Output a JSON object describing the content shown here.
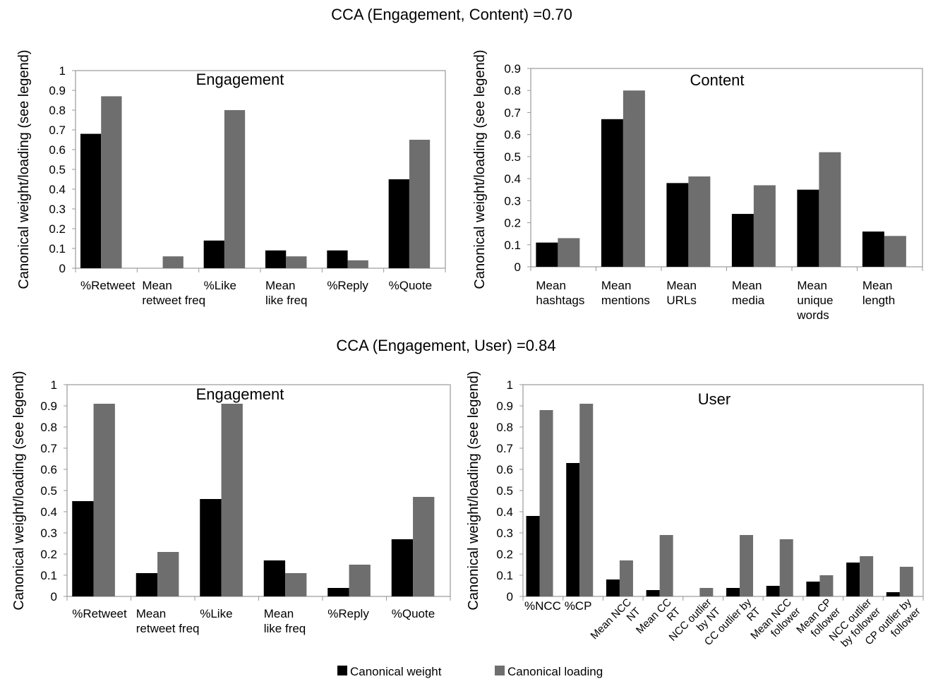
{
  "headers": {
    "top": "CCA (Engagement, Content) =0.70",
    "bottom": "CCA (Engagement, User) =0.84"
  },
  "legend": {
    "weight_label": "Canonical weight",
    "loading_label": "Canonical loading"
  },
  "colors": {
    "weight": "#000000",
    "loading": "#6e6e6e",
    "axis": "#999999"
  },
  "chart_data": [
    {
      "type": "bar",
      "title": "Engagement",
      "ylabel": "Canonical weight/loading (see legend)",
      "ylim": [
        0,
        1
      ],
      "yticks": [
        "0",
        "0.1",
        "0.2",
        "0.3",
        "0.4",
        "0.5",
        "0.6",
        "0.7",
        "0.8",
        "0.9",
        "1"
      ],
      "categories": [
        "%Retweet",
        "Mean\nretweet freq",
        "%Like",
        "Mean\nlike freq",
        "%Reply",
        "%Quote"
      ],
      "series": [
        {
          "name": "Canonical weight",
          "values": [
            0.68,
            0.0,
            0.14,
            0.09,
            0.09,
            0.45
          ]
        },
        {
          "name": "Canonical loading",
          "values": [
            0.87,
            0.06,
            0.8,
            0.06,
            0.04,
            0.65
          ]
        }
      ]
    },
    {
      "type": "bar",
      "title": "Content",
      "ylabel": "Canonical weight/loading (see legend)",
      "ylim": [
        0,
        0.9
      ],
      "yticks": [
        "0",
        "0.1",
        "0.2",
        "0.3",
        "0.4",
        "0.5",
        "0.6",
        "0.7",
        "0.8",
        "0.9"
      ],
      "categories": [
        "Mean\nhashtags",
        "Mean\nmentions",
        "Mean\nURLs",
        "Mean\nmedia",
        "Mean\nunique\nwords",
        "Mean\nlength"
      ],
      "series": [
        {
          "name": "Canonical weight",
          "values": [
            0.11,
            0.67,
            0.38,
            0.24,
            0.35,
            0.16
          ]
        },
        {
          "name": "Canonical loading",
          "values": [
            0.13,
            0.8,
            0.41,
            0.37,
            0.52,
            0.14
          ]
        }
      ]
    },
    {
      "type": "bar",
      "title": "Engagement",
      "ylabel": "Canonical weight/loading (see legend)",
      "ylim": [
        0,
        1
      ],
      "yticks": [
        "0",
        "0.1",
        "0.2",
        "0.3",
        "0.4",
        "0.5",
        "0.6",
        "0.7",
        "0.8",
        "0.9",
        "1"
      ],
      "categories": [
        "%Retweet",
        "Mean\nretweet freq",
        "%Like",
        "Mean\nlike freq",
        "%Reply",
        "%Quote"
      ],
      "series": [
        {
          "name": "Canonical weight",
          "values": [
            0.45,
            0.11,
            0.46,
            0.17,
            0.04,
            0.27
          ]
        },
        {
          "name": "Canonical loading",
          "values": [
            0.91,
            0.21,
            0.91,
            0.11,
            0.15,
            0.47
          ]
        }
      ]
    },
    {
      "type": "bar",
      "title": "User",
      "ylabel": "Canonical weight/loading (see legend)",
      "ylim": [
        0,
        1
      ],
      "yticks": [
        "0",
        "0.1",
        "0.2",
        "0.3",
        "0.4",
        "0.5",
        "0.6",
        "0.7",
        "0.8",
        "0.9",
        "1"
      ],
      "categories": [
        "%NCC",
        "%CP",
        "Mean NCC\nNT",
        "Mean CC\nRT",
        "NCC outlier\nby NT",
        "CC outlier by\nRT",
        "Mean NCC\nfollower",
        "Mean CP\nfollower",
        "NCC outlier\nby follower",
        "CP outlier by\nfollower"
      ],
      "series": [
        {
          "name": "Canonical weight",
          "values": [
            0.38,
            0.63,
            0.08,
            0.03,
            0.0,
            0.04,
            0.05,
            0.07,
            0.16,
            0.02
          ]
        },
        {
          "name": "Canonical loading",
          "values": [
            0.88,
            0.91,
            0.17,
            0.29,
            0.04,
            0.29,
            0.27,
            0.1,
            0.19,
            0.14
          ]
        }
      ]
    }
  ]
}
